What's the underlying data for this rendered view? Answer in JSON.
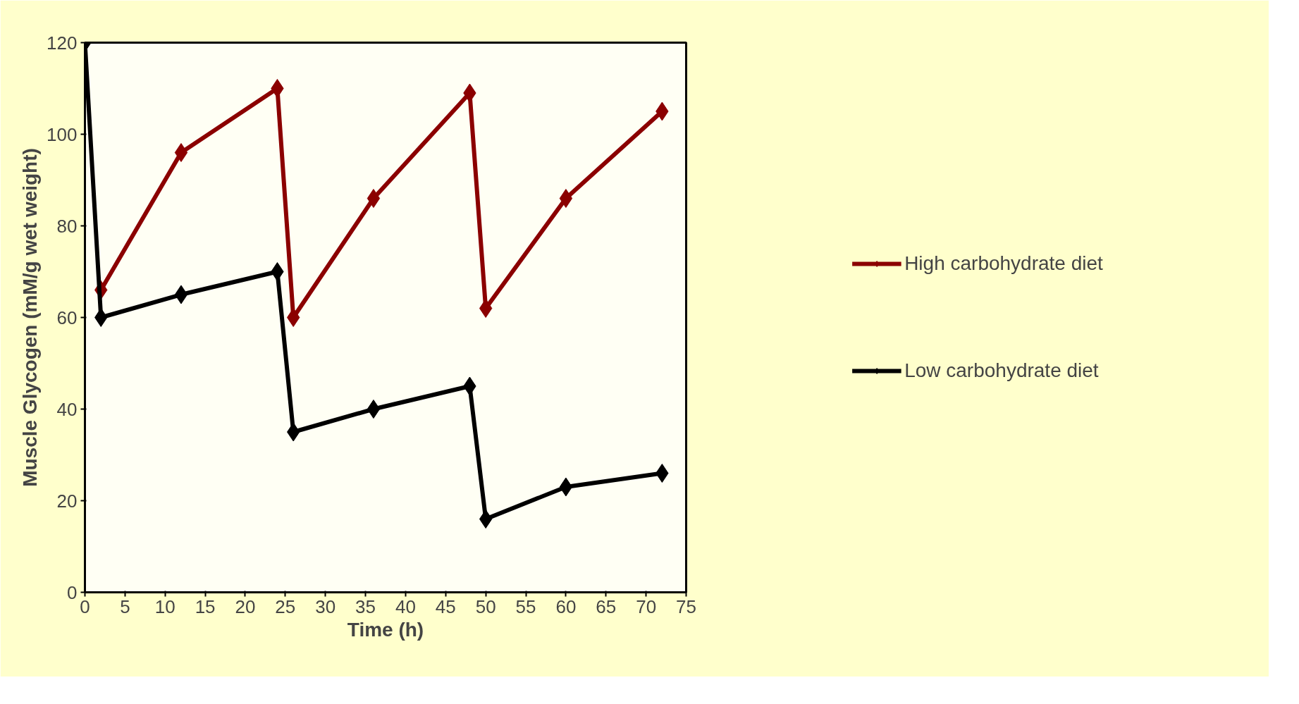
{
  "chart_data": {
    "type": "line",
    "xlabel": "Time (h)",
    "ylabel": "Muscle Glycogen (mM/g wet weight)",
    "xlim": [
      0,
      75
    ],
    "ylim": [
      0,
      120
    ],
    "xticks": [
      0,
      5,
      10,
      15,
      20,
      25,
      30,
      35,
      40,
      45,
      50,
      55,
      60,
      65,
      70,
      75
    ],
    "yticks": [
      0,
      20,
      40,
      60,
      80,
      100,
      120
    ],
    "grid": false,
    "legend": "right",
    "marker": "diamond",
    "line_style": "solid",
    "series": [
      {
        "name": "High carbohydrate diet",
        "color": "#8b0000",
        "x": [
          2,
          12,
          24,
          26,
          36,
          48,
          50,
          60,
          72
        ],
        "values": [
          66,
          96,
          110,
          60,
          86,
          109,
          62,
          86,
          105
        ]
      },
      {
        "name": "Low carbohydrate diet",
        "color": "#000000",
        "x": [
          0,
          2,
          12,
          24,
          26,
          36,
          48,
          50,
          60,
          72
        ],
        "values": [
          120,
          60,
          65,
          70,
          35,
          40,
          45,
          16,
          23,
          26
        ]
      }
    ]
  }
}
